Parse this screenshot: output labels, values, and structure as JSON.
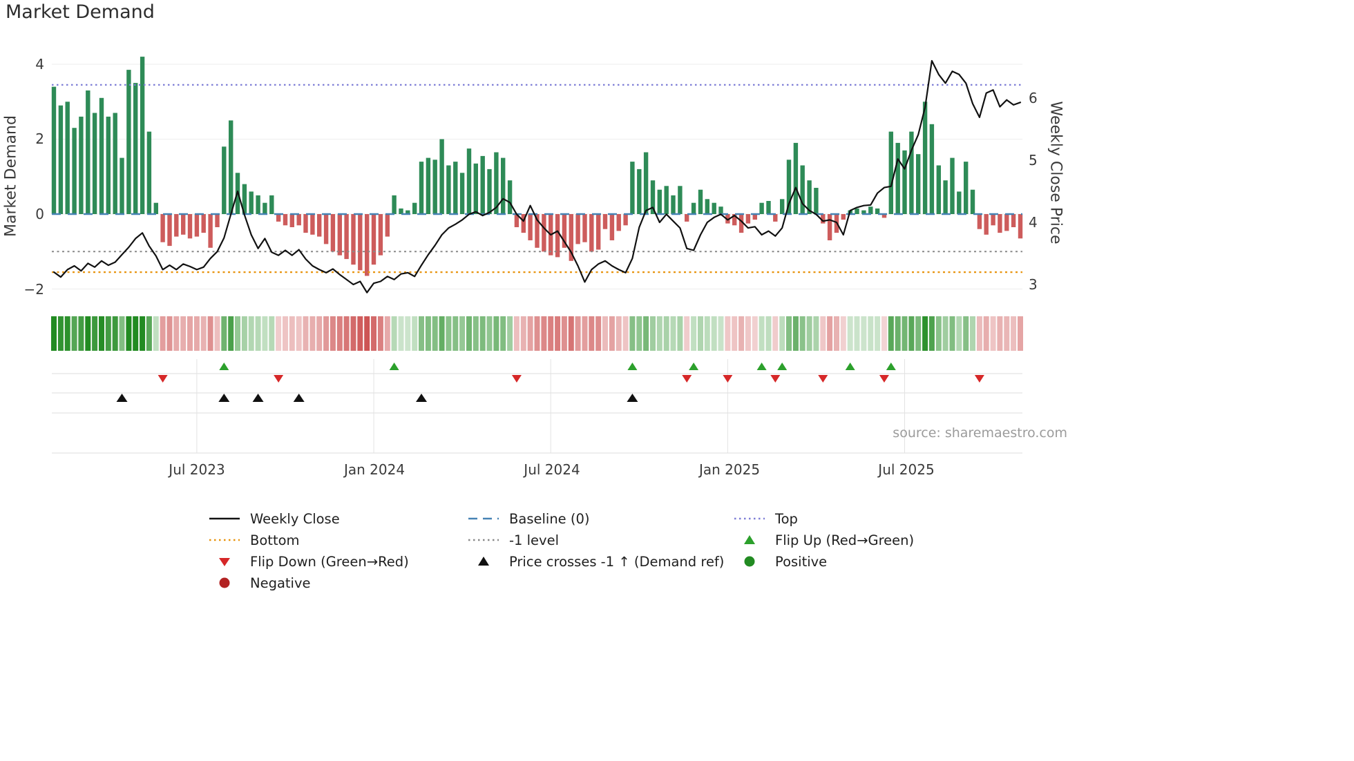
{
  "title": "Market Demand",
  "source": "source: sharemaestro.com",
  "axes": {
    "left_label": "Market Demand",
    "right_label": "Weekly Close Price",
    "left_tick_labels": [
      "4",
      "2",
      "0",
      "−2"
    ],
    "right_tick_labels": [
      "6",
      "5",
      "4",
      "3"
    ],
    "x_tick_labels": [
      "Jul 2023",
      "Jan 2024",
      "Jul 2024",
      "Jan 2025",
      "Jul 2025"
    ]
  },
  "colors": {
    "bar_positive": "#2e8b57",
    "bar_negative": "#cd5c5c",
    "price_line": "#111111",
    "top_line": "#7d7dd6",
    "baseline": "#4682b4",
    "minus1_line": "#888888",
    "bottom_line": "#e8930c",
    "flip_up": "#2ca02c",
    "flip_down": "#d62728",
    "price_cross": "#111111",
    "positive_dot": "#228b22",
    "negative_dot": "#b22222"
  },
  "legend": [
    {
      "label": "Weekly Close",
      "color": "#111111",
      "swatch": "line"
    },
    {
      "label": "Baseline (0)",
      "color": "#4682b4",
      "swatch": "dashed"
    },
    {
      "label": "Top",
      "color": "#7d7dd6",
      "swatch": "dotted"
    },
    {
      "label": "Bottom",
      "color": "#e8930c",
      "swatch": "dotted"
    },
    {
      "label": "-1 level",
      "color": "#888888",
      "swatch": "dotted"
    },
    {
      "label": "Flip Up (Red→Green)",
      "color": "#2ca02c",
      "swatch": "triangle-up"
    },
    {
      "label": "Flip Down (Green→Red)",
      "color": "#d62728",
      "swatch": "triangle-down"
    },
    {
      "label": "Price crosses -1 ↑ (Demand ref)",
      "color": "#111111",
      "swatch": "triangle-up"
    },
    {
      "label": "Positive",
      "color": "#228b22",
      "swatch": "circle"
    },
    {
      "label": "Negative",
      "color": "#b22222",
      "swatch": "circle"
    }
  ],
  "chart_data": {
    "type": "bar+line",
    "title": "Market Demand",
    "x_unit": "week",
    "x_tick_labels": [
      "Jul 2023",
      "Jan 2024",
      "Jul 2024",
      "Jan 2025",
      "Jul 2025"
    ],
    "x_tick_weeks": [
      21,
      47,
      73,
      99,
      125
    ],
    "left_axis": {
      "label": "Market Demand",
      "ticks": [
        4,
        2,
        0,
        -2
      ],
      "range": [
        -2.17,
        4.33
      ]
    },
    "right_axis": {
      "label": "Weekly Close Price",
      "ticks": [
        6,
        5,
        4,
        3
      ],
      "range": [
        2.82,
        6.74
      ]
    },
    "grid": "light-horizontal",
    "legend_position": "bottom",
    "series": [
      {
        "name": "Market Demand",
        "type": "bar",
        "axis": "left",
        "values": [
          3.4,
          2.9,
          3.0,
          2.3,
          2.6,
          3.3,
          2.7,
          3.1,
          2.6,
          2.7,
          1.5,
          3.85,
          3.5,
          4.2,
          2.2,
          0.3,
          -0.75,
          -0.85,
          -0.6,
          -0.55,
          -0.65,
          -0.6,
          -0.5,
          -0.9,
          -0.35,
          1.8,
          2.5,
          1.1,
          0.8,
          0.6,
          0.5,
          0.3,
          0.5,
          -0.2,
          -0.3,
          -0.35,
          -0.3,
          -0.5,
          -0.55,
          -0.6,
          -0.8,
          -1.0,
          -1.1,
          -1.2,
          -1.35,
          -1.5,
          -1.65,
          -1.35,
          -1.1,
          -0.6,
          0.5,
          0.15,
          0.1,
          0.3,
          1.4,
          1.5,
          1.45,
          2.0,
          1.3,
          1.4,
          1.1,
          1.75,
          1.35,
          1.55,
          1.2,
          1.65,
          1.5,
          0.9,
          -0.35,
          -0.5,
          -0.7,
          -0.9,
          -1.0,
          -1.1,
          -1.15,
          -0.9,
          -1.25,
          -0.8,
          -0.75,
          -1.0,
          -0.95,
          -0.4,
          -0.7,
          -0.45,
          -0.3,
          1.4,
          1.2,
          1.65,
          0.9,
          0.65,
          0.75,
          0.5,
          0.75,
          -0.2,
          0.3,
          0.65,
          0.4,
          0.3,
          0.2,
          -0.25,
          -0.3,
          -0.5,
          -0.25,
          -0.15,
          0.3,
          0.35,
          -0.2,
          0.4,
          1.45,
          1.9,
          1.3,
          0.9,
          0.7,
          -0.25,
          -0.7,
          -0.5,
          -0.15,
          0.1,
          0.15,
          0.1,
          0.2,
          0.15,
          -0.1,
          2.2,
          1.9,
          1.7,
          2.2,
          1.6,
          3.0,
          2.4,
          1.3,
          0.9,
          1.5,
          0.6,
          1.4,
          0.65,
          -0.4,
          -0.55,
          -0.3,
          -0.5,
          -0.45,
          -0.35,
          -0.65
        ]
      },
      {
        "name": "Weekly Close",
        "type": "line",
        "axis": "right",
        "values": [
          3.2,
          3.12,
          3.24,
          3.3,
          3.22,
          3.34,
          3.28,
          3.38,
          3.31,
          3.36,
          3.48,
          3.6,
          3.74,
          3.83,
          3.62,
          3.46,
          3.24,
          3.31,
          3.24,
          3.33,
          3.29,
          3.24,
          3.28,
          3.42,
          3.53,
          3.75,
          4.13,
          4.5,
          4.12,
          3.8,
          3.58,
          3.74,
          3.52,
          3.47,
          3.55,
          3.47,
          3.56,
          3.41,
          3.3,
          3.24,
          3.19,
          3.25,
          3.16,
          3.08,
          3.0,
          3.05,
          2.87,
          3.02,
          3.05,
          3.13,
          3.08,
          3.17,
          3.19,
          3.13,
          3.31,
          3.48,
          3.63,
          3.8,
          3.91,
          3.97,
          4.04,
          4.13,
          4.17,
          4.11,
          4.16,
          4.24,
          4.38,
          4.32,
          4.13,
          4.02,
          4.27,
          4.04,
          3.91,
          3.8,
          3.86,
          3.69,
          3.52,
          3.3,
          3.04,
          3.24,
          3.33,
          3.38,
          3.3,
          3.24,
          3.19,
          3.42,
          3.92,
          4.19,
          4.24,
          4.0,
          4.13,
          4.02,
          3.91,
          3.58,
          3.55,
          3.8,
          4.0,
          4.08,
          4.13,
          4.04,
          4.11,
          4.02,
          3.91,
          3.93,
          3.8,
          3.86,
          3.78,
          3.91,
          4.3,
          4.56,
          4.3,
          4.19,
          4.13,
          4.02,
          4.04,
          4.0,
          3.8,
          4.19,
          4.24,
          4.27,
          4.28,
          4.47,
          4.56,
          4.58,
          5.02,
          4.86,
          5.16,
          5.41,
          5.85,
          6.6,
          6.38,
          6.24,
          6.43,
          6.38,
          6.24,
          5.91,
          5.69,
          6.08,
          6.13,
          5.86,
          5.97,
          5.89,
          5.93
        ]
      }
    ],
    "reference_lines": {
      "top": 3.45,
      "baseline": 0,
      "minus1_level": -1,
      "bottom": -1.55
    },
    "markers": {
      "flip_up_weeks": [
        25,
        50,
        85,
        94,
        104,
        107,
        117,
        123
      ],
      "flip_down_weeks": [
        16,
        33,
        68,
        93,
        99,
        106,
        113,
        122,
        136
      ],
      "price_cross_weeks": [
        10,
        25,
        30,
        36,
        54,
        85
      ]
    },
    "heatmap": "demand sign/intensity strip, one cell per week"
  }
}
